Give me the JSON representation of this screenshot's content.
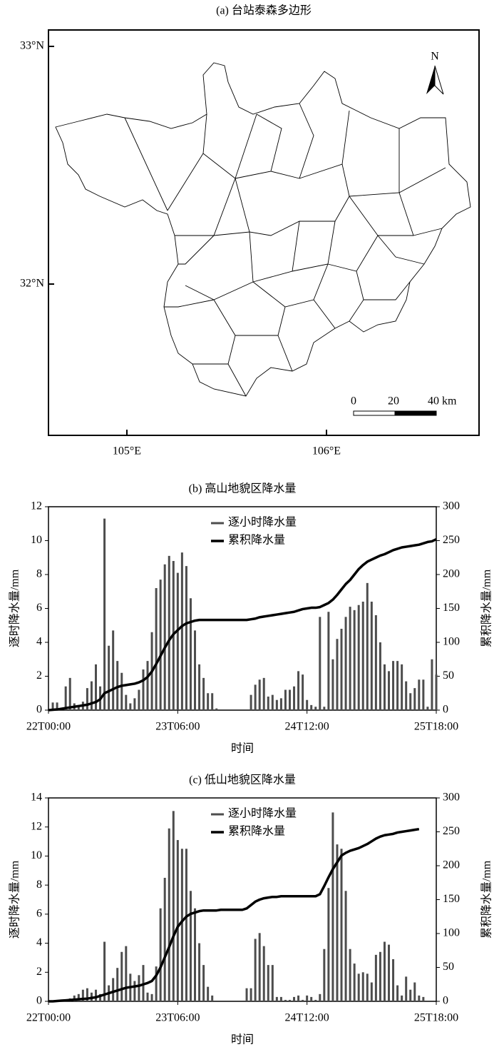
{
  "map": {
    "title": "(a) 台站泰森多边形",
    "lat_labels": [
      "33°N",
      "32°N"
    ],
    "lon_labels": [
      "105°E",
      "106°E"
    ],
    "north": "N",
    "scale_labels": [
      "0",
      "20",
      "40 km"
    ]
  },
  "chart_data": [
    {
      "type": "bar",
      "title": "(b) 高山地貌区降水量",
      "x_label": "时间",
      "y_label": "逐时降水量/mm",
      "y2_label": "累积降水量/mm",
      "legend": "top",
      "categories": [
        "22T00:00",
        null,
        null,
        null,
        null,
        null,
        null,
        null,
        null,
        null,
        null,
        null,
        null,
        null,
        null,
        null,
        null,
        null,
        null,
        null,
        null,
        null,
        null,
        null,
        null,
        null,
        null,
        null,
        null,
        null,
        "23T06:00",
        null,
        null,
        null,
        null,
        null,
        null,
        null,
        null,
        null,
        null,
        null,
        null,
        null,
        null,
        null,
        null,
        null,
        null,
        null,
        null,
        null,
        null,
        null,
        null,
        null,
        null,
        null,
        null,
        null,
        "24T12:00",
        null,
        null,
        null,
        null,
        null,
        null,
        null,
        null,
        null,
        null,
        null,
        null,
        null,
        null,
        null,
        null,
        null,
        null,
        null,
        null,
        null,
        null,
        null,
        null,
        null,
        null,
        null,
        null,
        null,
        "25T18:00"
      ],
      "ylim": [
        0,
        12
      ],
      "yticks": [
        0,
        2,
        4,
        6,
        8,
        10,
        12
      ],
      "y2lim": [
        0,
        300
      ],
      "y2ticks": [
        0,
        50,
        100,
        150,
        200,
        250,
        300
      ],
      "series": [
        {
          "name": "逐小时降水量",
          "type": "bar",
          "color": "#4d4d4d",
          "values": [
            0,
            0.45,
            0.45,
            0,
            1.4,
            1.9,
            0.4,
            0.3,
            0.5,
            1.3,
            1.7,
            2.7,
            1.4,
            11.3,
            3.8,
            4.7,
            2.9,
            2.2,
            0.9,
            0.4,
            0.7,
            1.2,
            2.4,
            2.9,
            4.6,
            7.2,
            7.7,
            8.6,
            9.1,
            8.8,
            8.1,
            9.3,
            8.5,
            6.6,
            4.7,
            2.7,
            1.9,
            1.0,
            1.0,
            0.1,
            0,
            0,
            0,
            0,
            0,
            0,
            0,
            0.9,
            1.5,
            1.8,
            1.9,
            0.8,
            0.9,
            0.6,
            0.7,
            1.2,
            1.2,
            1.4,
            2.3,
            2.1,
            0.6,
            0.3,
            0.2,
            5.5,
            0.2,
            5.8,
            3.0,
            4.2,
            4.8,
            5.5,
            6.1,
            5.9,
            6.2,
            6.4,
            7.5,
            6.4,
            5.6,
            4.0,
            2.7,
            2.3,
            2.9,
            2.9,
            2.7,
            1.7,
            1.0,
            1.3,
            1.8,
            1.8,
            0.2,
            3.0,
            2.1
          ]
        },
        {
          "name": "累积降水量",
          "type": "line",
          "axis": "y2",
          "color": "#000000",
          "values": [
            0,
            0.5,
            1,
            2,
            3,
            4,
            5,
            6,
            7,
            8,
            10,
            12,
            16,
            25,
            28,
            31,
            34,
            36,
            37,
            38,
            39,
            41,
            44,
            49,
            57,
            68,
            80,
            92,
            103,
            112,
            118,
            124,
            128,
            130,
            132,
            133,
            133,
            133,
            133,
            133,
            133,
            133,
            133,
            133,
            133,
            133,
            133,
            134,
            135,
            137,
            138,
            139,
            140,
            141,
            142,
            143,
            144,
            145,
            147,
            149,
            150,
            151,
            151,
            152,
            155,
            158,
            163,
            170,
            178,
            186,
            192,
            200,
            208,
            214,
            219,
            222,
            225,
            228,
            230,
            233,
            236,
            238,
            240,
            241,
            242,
            243,
            244,
            246,
            248,
            249,
            252
          ]
        }
      ]
    },
    {
      "type": "bar",
      "title": "(c) 低山地貌区降水量",
      "x_label": "时间",
      "y_label": "逐时降水量/mm",
      "y2_label": "累积降水量/mm",
      "legend": "top",
      "categories": [
        "22T00:00",
        null,
        null,
        null,
        null,
        null,
        null,
        null,
        null,
        null,
        null,
        null,
        null,
        null,
        null,
        null,
        null,
        null,
        null,
        null,
        null,
        null,
        null,
        null,
        null,
        null,
        null,
        null,
        null,
        null,
        "23T06:00",
        null,
        null,
        null,
        null,
        null,
        null,
        null,
        null,
        null,
        null,
        null,
        null,
        null,
        null,
        null,
        null,
        null,
        null,
        null,
        null,
        null,
        null,
        null,
        null,
        null,
        null,
        null,
        null,
        null,
        "24T12:00",
        null,
        null,
        null,
        null,
        null,
        null,
        null,
        null,
        null,
        null,
        null,
        null,
        null,
        null,
        null,
        null,
        null,
        null,
        null,
        null,
        null,
        null,
        null,
        null,
        null,
        null,
        null,
        null,
        null,
        "25T18:00"
      ],
      "ylim": [
        0,
        14
      ],
      "yticks": [
        0,
        2,
        4,
        6,
        8,
        10,
        12,
        14
      ],
      "y2lim": [
        0,
        300
      ],
      "y2ticks": [
        0,
        50,
        100,
        150,
        200,
        250,
        300
      ],
      "series": [
        {
          "name": "逐小时降水量",
          "type": "bar",
          "color": "#4d4d4d",
          "values": [
            0,
            0,
            0.05,
            0.1,
            0.1,
            0.2,
            0.4,
            0.5,
            0.8,
            0.9,
            0.6,
            0.8,
            0.5,
            4.1,
            1.1,
            1.6,
            2.3,
            3.4,
            3.8,
            1.9,
            1.4,
            1.8,
            2.5,
            0.6,
            0.5,
            2.4,
            6.4,
            8.5,
            11.9,
            13.1,
            11.1,
            10.5,
            10.5,
            7.6,
            6.4,
            4.0,
            2.5,
            1.0,
            0.4,
            0,
            0,
            0,
            0,
            0,
            0,
            0,
            0.9,
            0.9,
            4.3,
            4.7,
            3.8,
            2.5,
            2.5,
            0.3,
            0.3,
            0.1,
            0.1,
            0.3,
            0.4,
            0.1,
            0.4,
            0.3,
            0.1,
            0.5,
            3.6,
            7.8,
            13.0,
            10.8,
            10.5,
            7.6,
            3.6,
            2.6,
            1.9,
            2.0,
            1.9,
            1.3,
            3.2,
            3.4,
            4.1,
            3.9,
            2.9,
            1.1,
            0.4,
            1.7,
            0.8,
            1.3,
            0.4,
            0.3,
            0,
            0,
            0
          ]
        },
        {
          "name": "累积降水量",
          "type": "line",
          "axis": "y2",
          "color": "#000000",
          "values": [
            0,
            0,
            0.5,
            1,
            1.5,
            2,
            2.5,
            3,
            3.5,
            4,
            5,
            6,
            8,
            10,
            12,
            14,
            16,
            18,
            20,
            21,
            22,
            23,
            25,
            27,
            30,
            38,
            50,
            65,
            80,
            96,
            110,
            118,
            125,
            129,
            131,
            133,
            134,
            134,
            134,
            134,
            135,
            135,
            135,
            135,
            135,
            135,
            137,
            142,
            147,
            150,
            152,
            153,
            154,
            154,
            155,
            155,
            155,
            155,
            155,
            155,
            155,
            155,
            155,
            158,
            170,
            183,
            195,
            205,
            215,
            219,
            222,
            224,
            226,
            229,
            232,
            236,
            240,
            243,
            245,
            246,
            247,
            249,
            250,
            251,
            252,
            253,
            254,
            null,
            null,
            null,
            null
          ]
        }
      ]
    }
  ]
}
